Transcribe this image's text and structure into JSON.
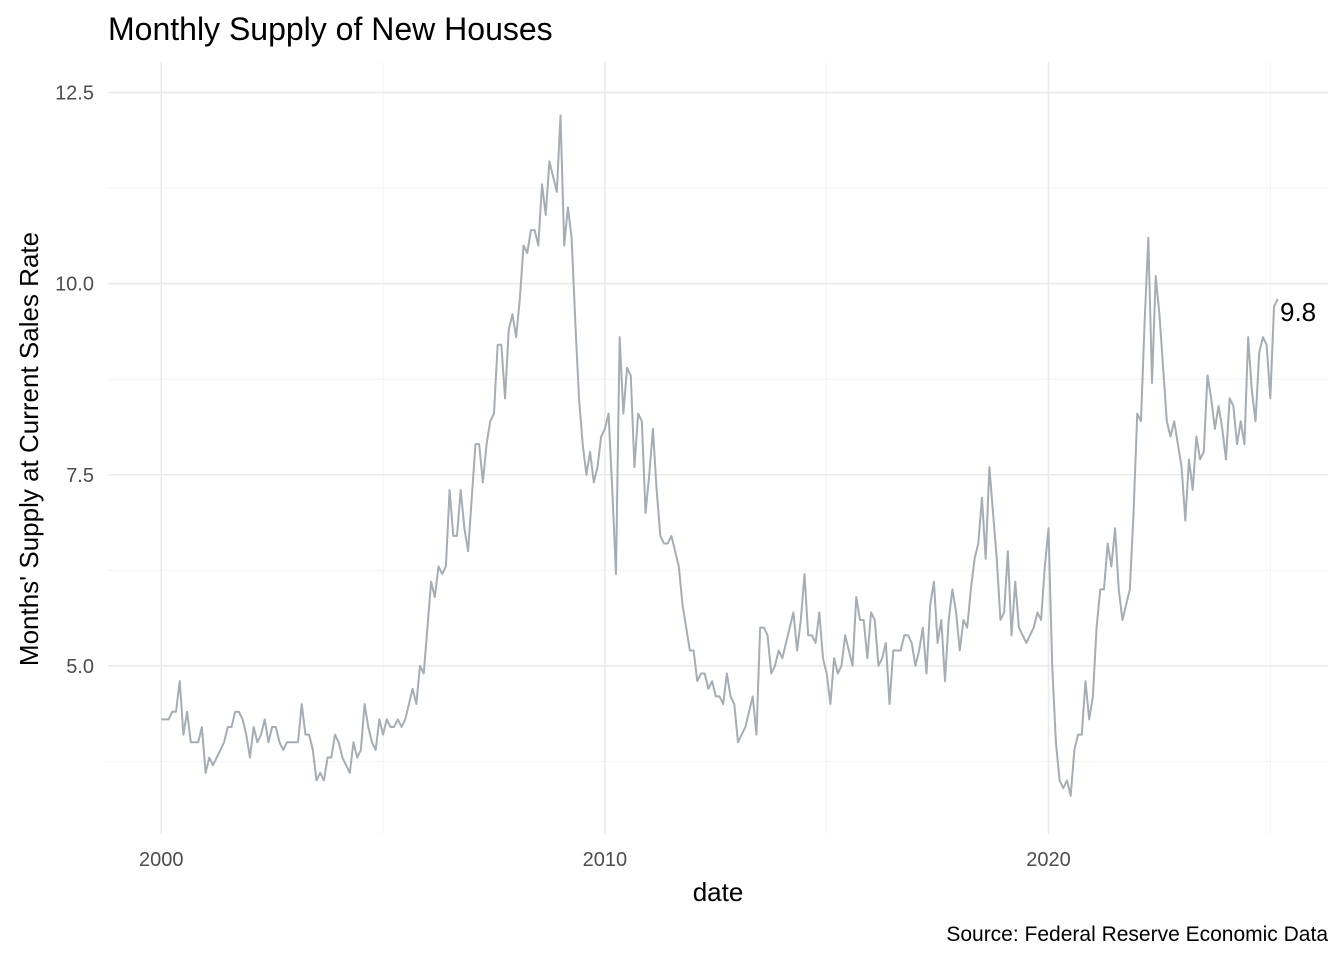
{
  "chart_data": {
    "type": "line",
    "title": "Monthly Supply of New Houses",
    "xlabel": "date",
    "ylabel": "Months' Supply at Current Sales Rate",
    "caption": "Source: Federal Reserve Economic Data",
    "end_label": "9.8",
    "xlim": [
      1998.8,
      2026.3
    ],
    "ylim": [
      2.8,
      12.9
    ],
    "x_ticks": [
      {
        "value": 2000,
        "label": "2000"
      },
      {
        "value": 2010,
        "label": "2010"
      },
      {
        "value": 2020,
        "label": "2020"
      }
    ],
    "x_minor_ticks": [
      2005,
      2015,
      2025
    ],
    "y_ticks": [
      {
        "value": 5,
        "label": "5.0"
      },
      {
        "value": 7.5,
        "label": "7.5"
      },
      {
        "value": 10,
        "label": "10.0"
      },
      {
        "value": 12.5,
        "label": "12.5"
      }
    ],
    "y_minor_ticks": [
      3.75,
      6.25,
      8.75,
      11.25
    ],
    "grid": true,
    "legend": "none",
    "series_color": "#a6adb4",
    "series": [
      {
        "x_start": 2000.0,
        "x_step_months": 1,
        "values": [
          4.3,
          4.3,
          4.3,
          4.4,
          4.4,
          4.8,
          4.1,
          4.4,
          4.0,
          4.0,
          4.0,
          4.2,
          3.6,
          3.8,
          3.7,
          3.8,
          3.9,
          4.0,
          4.2,
          4.2,
          4.4,
          4.4,
          4.3,
          4.1,
          3.8,
          4.2,
          4.0,
          4.1,
          4.3,
          4.0,
          4.2,
          4.2,
          4.0,
          3.9,
          4.0,
          4.0,
          4.0,
          4.0,
          4.5,
          4.1,
          4.1,
          3.9,
          3.5,
          3.6,
          3.5,
          3.8,
          3.8,
          4.1,
          4.0,
          3.8,
          3.7,
          3.6,
          4.0,
          3.8,
          3.9,
          4.5,
          4.2,
          4.0,
          3.9,
          4.3,
          4.1,
          4.3,
          4.2,
          4.2,
          4.3,
          4.2,
          4.3,
          4.5,
          4.7,
          4.5,
          5.0,
          4.9,
          5.5,
          6.1,
          5.9,
          6.3,
          6.2,
          6.3,
          7.3,
          6.7,
          6.7,
          7.3,
          6.8,
          6.5,
          7.2,
          7.9,
          7.9,
          7.4,
          7.9,
          8.2,
          8.3,
          9.2,
          9.2,
          8.5,
          9.4,
          9.6,
          9.3,
          9.8,
          10.5,
          10.4,
          10.7,
          10.7,
          10.5,
          11.3,
          10.9,
          11.6,
          11.4,
          11.2,
          12.2,
          10.5,
          11.0,
          10.6,
          9.5,
          8.5,
          7.9,
          7.5,
          7.8,
          7.4,
          7.6,
          8.0,
          8.1,
          8.3,
          7.3,
          6.2,
          9.3,
          8.3,
          8.9,
          8.8,
          7.6,
          8.3,
          8.2,
          7.0,
          7.5,
          8.1,
          7.3,
          6.7,
          6.6,
          6.6,
          6.7,
          6.5,
          6.3,
          5.8,
          5.5,
          5.2,
          5.2,
          4.8,
          4.9,
          4.9,
          4.7,
          4.8,
          4.6,
          4.6,
          4.5,
          4.9,
          4.6,
          4.5,
          4.0,
          4.1,
          4.2,
          4.4,
          4.6,
          4.1,
          5.5,
          5.5,
          5.4,
          4.9,
          5.0,
          5.2,
          5.1,
          5.3,
          5.5,
          5.7,
          5.2,
          5.6,
          6.2,
          5.4,
          5.4,
          5.3,
          5.7,
          5.1,
          4.9,
          4.5,
          5.1,
          4.9,
          5.0,
          5.4,
          5.2,
          5.0,
          5.9,
          5.6,
          5.6,
          5.1,
          5.7,
          5.6,
          5.0,
          5.1,
          5.3,
          4.5,
          5.2,
          5.2,
          5.2,
          5.4,
          5.4,
          5.3,
          5.0,
          5.2,
          5.5,
          4.9,
          5.8,
          6.1,
          5.3,
          5.6,
          4.8,
          5.6,
          6.0,
          5.7,
          5.2,
          5.6,
          5.5,
          6.0,
          6.4,
          6.6,
          7.2,
          6.4,
          7.6,
          7.0,
          6.4,
          5.6,
          5.7,
          6.5,
          5.4,
          6.1,
          5.5,
          5.4,
          5.3,
          5.4,
          5.5,
          5.7,
          5.6,
          6.3,
          6.8,
          5.0,
          4.0,
          3.5,
          3.4,
          3.5,
          3.3,
          3.9,
          4.1,
          4.1,
          4.8,
          4.3,
          4.6,
          5.5,
          6.0,
          6.0,
          6.6,
          6.3,
          6.8,
          6.0,
          5.6,
          5.8,
          6.0,
          7.0,
          8.3,
          8.2,
          9.5,
          10.6,
          8.7,
          10.1,
          9.6,
          8.9,
          8.2,
          8.0,
          8.2,
          7.9,
          7.6,
          6.9,
          7.7,
          7.3,
          8.0,
          7.7,
          7.8,
          8.8,
          8.5,
          8.1,
          8.4,
          8.1,
          7.7,
          8.5,
          8.4,
          7.9,
          8.2,
          7.9,
          9.3,
          8.6,
          8.2,
          9.1,
          9.3,
          9.2,
          8.5,
          9.7,
          9.8
        ]
      }
    ]
  }
}
